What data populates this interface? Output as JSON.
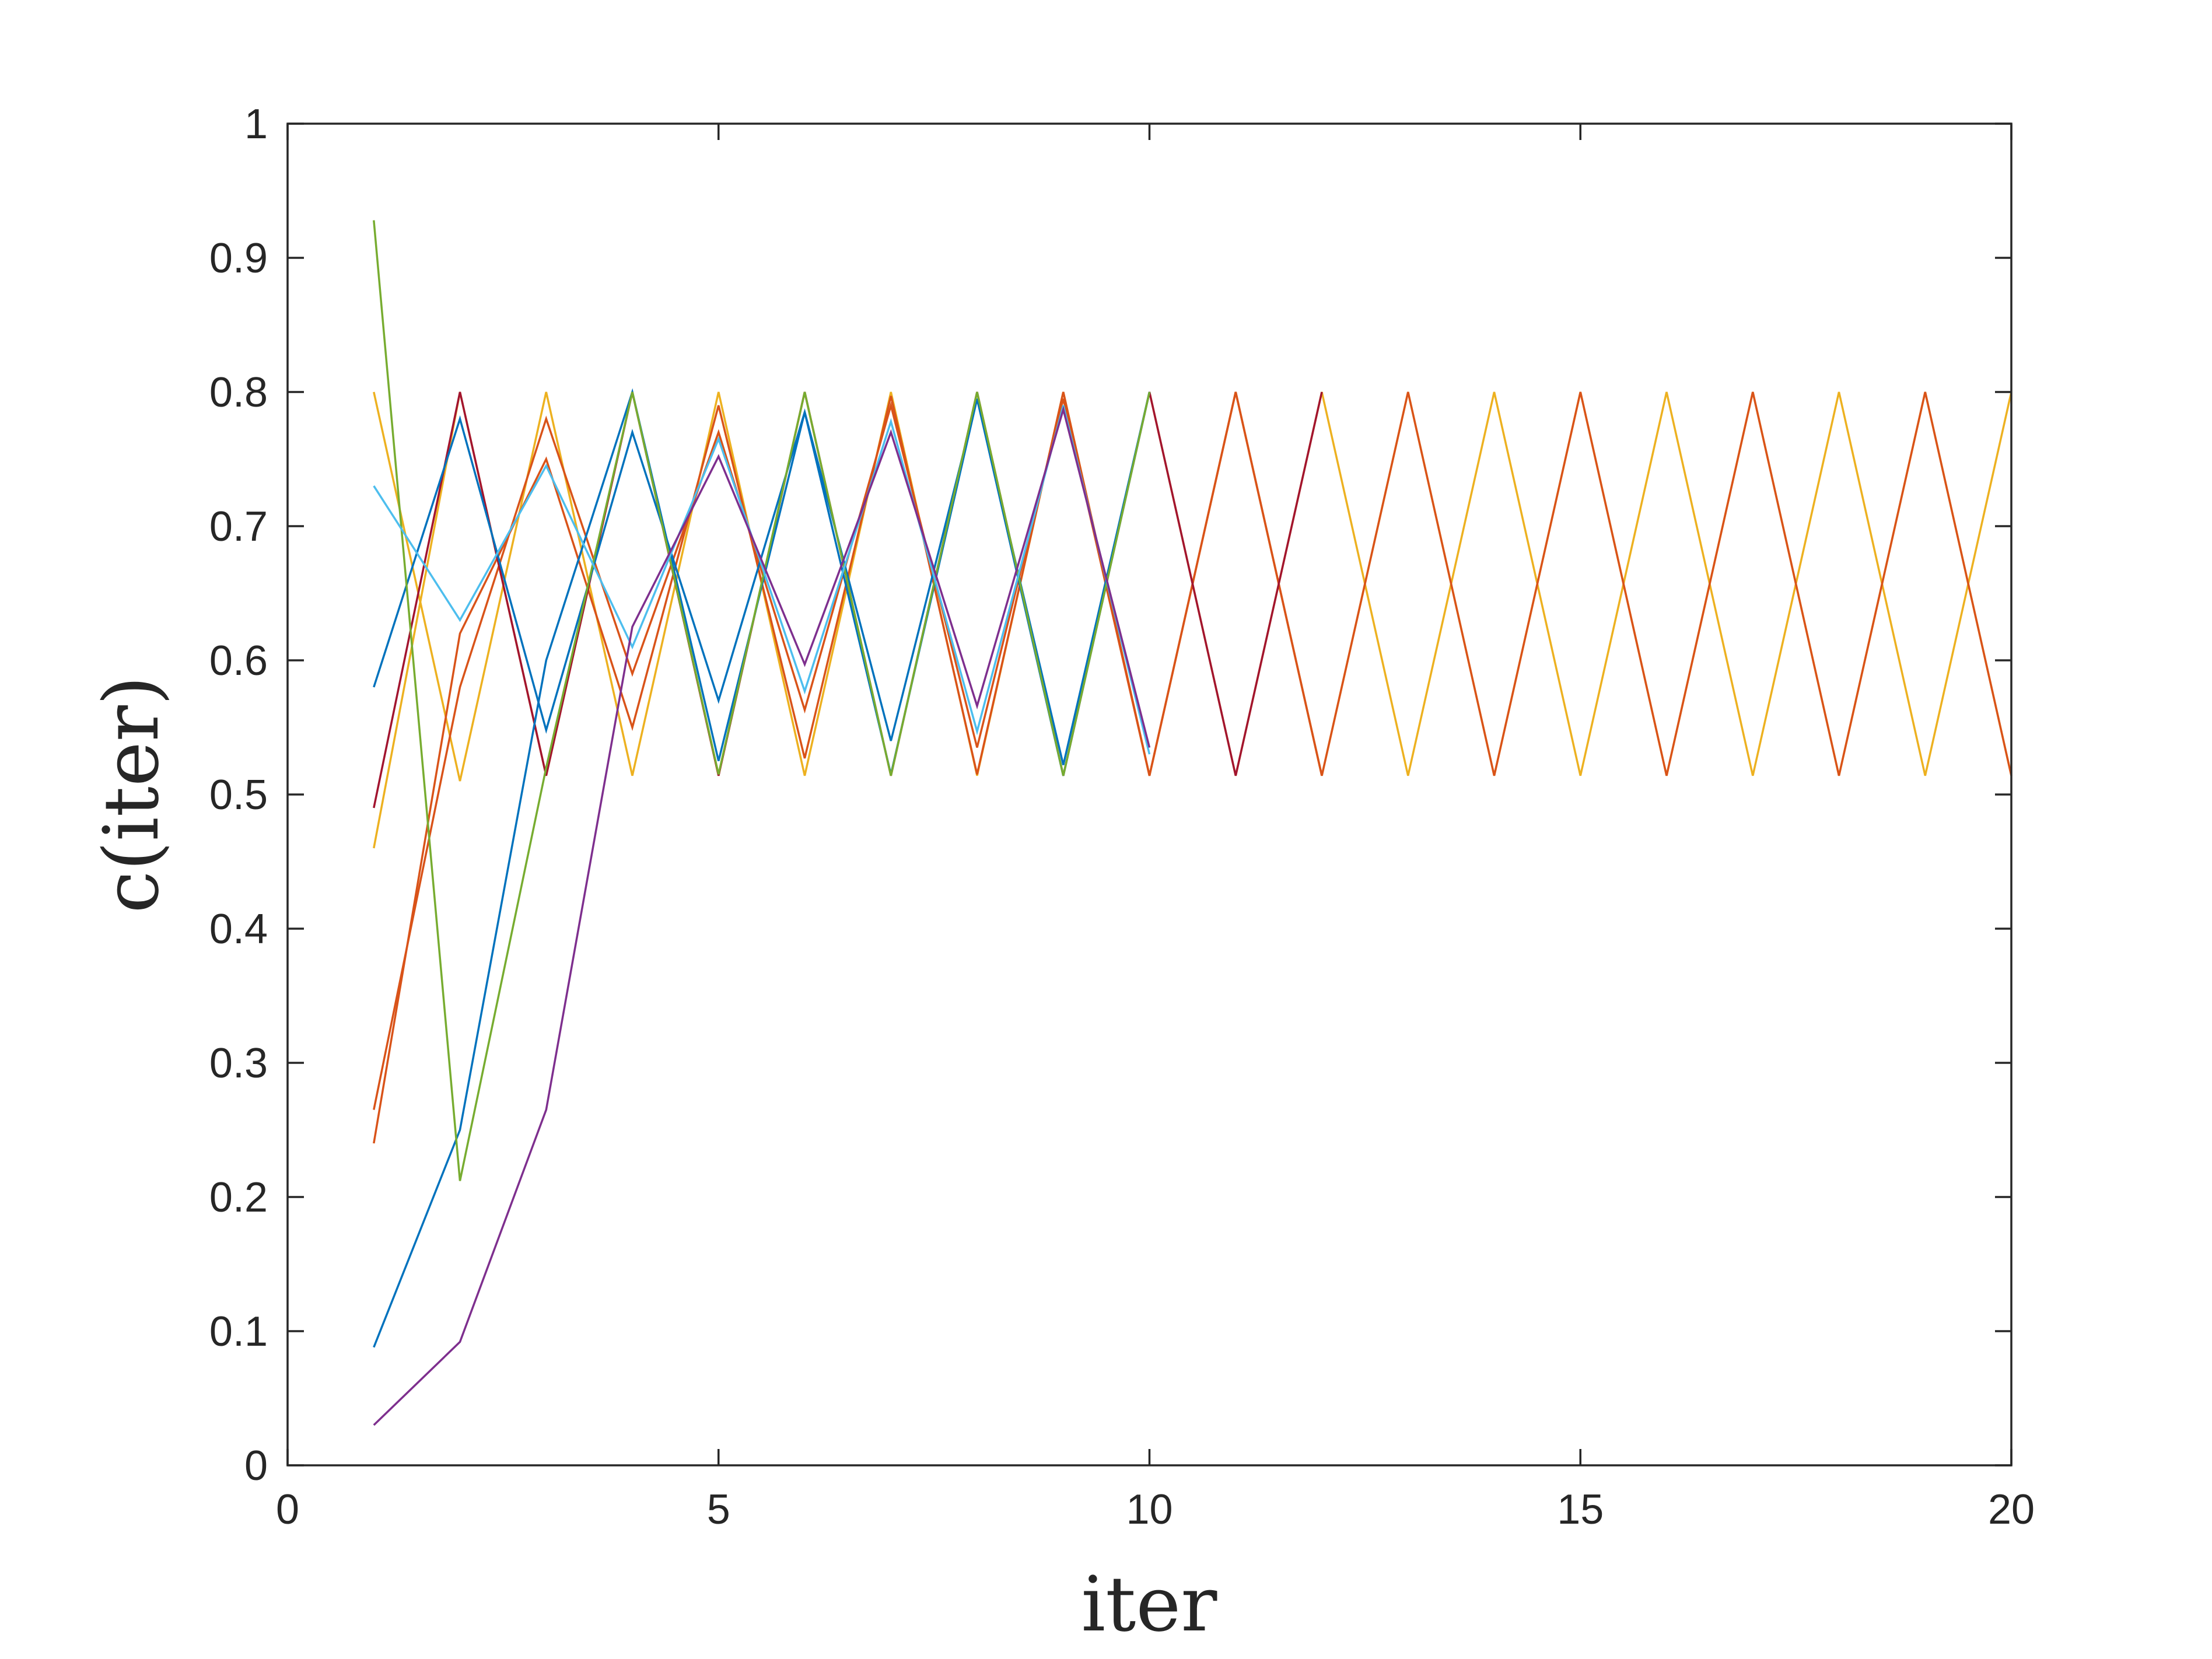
{
  "chart_data": {
    "type": "line",
    "title": "",
    "xlabel": "iter",
    "ylabel": "c(iter)",
    "xlim": [
      0,
      20
    ],
    "ylim": [
      0,
      1
    ],
    "xticks": [
      "0",
      "5",
      "10",
      "15",
      "20"
    ],
    "yticks": [
      "0",
      "0.1",
      "0.2",
      "0.3",
      "0.4",
      "0.5",
      "0.6",
      "0.7",
      "0.8",
      "0.9",
      "1"
    ],
    "grid": false,
    "legend": "none",
    "series": [
      {
        "color": "#EDB120",
        "x": [
          1,
          2,
          3,
          4,
          5,
          6,
          7,
          8,
          9,
          10,
          11,
          12,
          13,
          14,
          15,
          16,
          17,
          18,
          19,
          20
        ],
        "y": [
          0.8,
          0.51,
          0.8,
          0.514,
          0.8,
          0.514,
          0.8,
          0.514,
          0.8,
          0.514,
          0.8,
          0.514,
          0.8,
          0.514,
          0.8,
          0.514,
          0.8,
          0.514,
          0.8,
          0.514
        ]
      },
      {
        "color": "#EDB120",
        "x": [
          1,
          2,
          3,
          4,
          5,
          6,
          7,
          8,
          9,
          10,
          11,
          12,
          13,
          14,
          15,
          16,
          17,
          18,
          19,
          20
        ],
        "y": [
          0.46,
          0.8,
          0.514,
          0.8,
          0.514,
          0.8,
          0.514,
          0.8,
          0.514,
          0.8,
          0.514,
          0.8,
          0.514,
          0.8,
          0.514,
          0.8,
          0.514,
          0.8,
          0.514,
          0.8
        ]
      },
      {
        "color": "#D95319",
        "x": [
          1,
          2,
          3,
          4,
          5,
          6,
          7,
          8,
          9,
          10,
          11,
          12,
          13,
          14,
          15,
          16,
          17,
          18,
          19,
          20
        ],
        "y": [
          0.24,
          0.62,
          0.75,
          0.55,
          0.79,
          0.527,
          0.797,
          0.515,
          0.8,
          0.514,
          0.8,
          0.514,
          0.8,
          0.514,
          0.8,
          0.514,
          0.8,
          0.514,
          0.8,
          0.514
        ]
      },
      {
        "color": "#D95319",
        "x": [
          1,
          2,
          3,
          4,
          5,
          6,
          7,
          8,
          9,
          10,
          11,
          12
        ],
        "y": [
          0.265,
          0.58,
          0.78,
          0.59,
          0.77,
          0.563,
          0.79,
          0.535,
          0.795,
          0.514,
          0.8,
          0.514
        ]
      },
      {
        "color": "#A2142F",
        "x": [
          1,
          2,
          3,
          4,
          5,
          6,
          7,
          8,
          9,
          10,
          11,
          12
        ],
        "y": [
          0.49,
          0.8,
          0.514,
          0.8,
          0.514,
          0.8,
          0.514,
          0.8,
          0.514,
          0.8,
          0.514,
          0.8
        ]
      },
      {
        "color": "#0072BD",
        "x": [
          1,
          2,
          3,
          4,
          5,
          6,
          7,
          8,
          9,
          10
        ],
        "y": [
          0.58,
          0.78,
          0.548,
          0.77,
          0.57,
          0.785,
          0.54,
          0.795,
          0.522,
          0.8
        ]
      },
      {
        "color": "#0072BD",
        "x": [
          1,
          2,
          3,
          4,
          5,
          6,
          7,
          8,
          9,
          10
        ],
        "y": [
          0.088,
          0.25,
          0.6,
          0.8,
          0.525,
          0.785,
          0.515,
          0.795,
          0.514,
          0.8
        ]
      },
      {
        "color": "#77AC30",
        "x": [
          1,
          2,
          3,
          4,
          5,
          6,
          7,
          8,
          9,
          10
        ],
        "y": [
          0.928,
          0.212,
          0.52,
          0.8,
          0.515,
          0.8,
          0.514,
          0.8,
          0.514,
          0.8
        ]
      },
      {
        "color": "#4DBEEE",
        "x": [
          1,
          2,
          3,
          4,
          5,
          6,
          7,
          8,
          9,
          10
        ],
        "y": [
          0.73,
          0.63,
          0.745,
          0.61,
          0.765,
          0.577,
          0.778,
          0.547,
          0.79,
          0.53
        ]
      },
      {
        "color": "#7E2F8E",
        "x": [
          1,
          2,
          3,
          4,
          5,
          6,
          7,
          8,
          9,
          10
        ],
        "y": [
          0.03,
          0.092,
          0.265,
          0.625,
          0.752,
          0.597,
          0.77,
          0.566,
          0.787,
          0.535
        ]
      }
    ]
  }
}
